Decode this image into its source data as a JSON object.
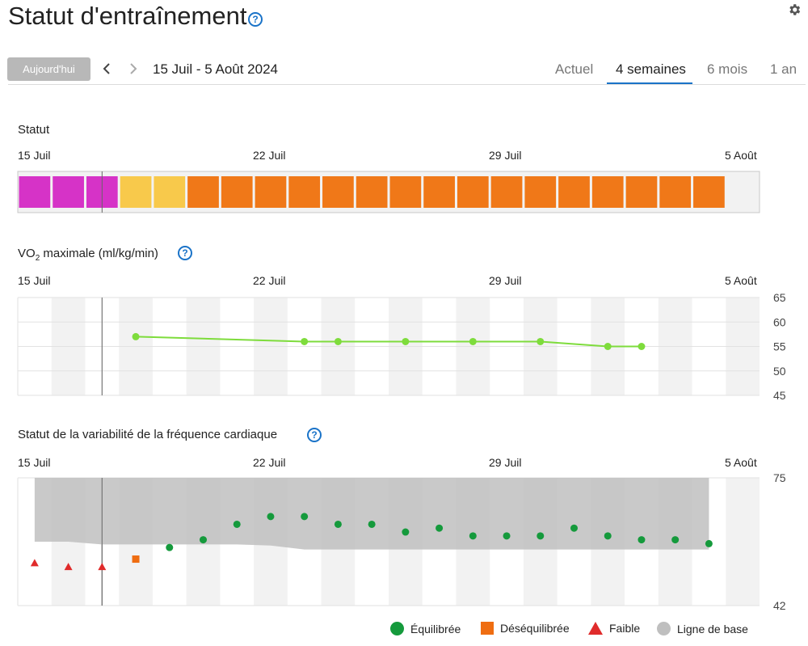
{
  "header": {
    "title": "Statut d'entraînement",
    "help_glyph": "?"
  },
  "toolbar": {
    "today_label": "Aujourd'hui",
    "date_range": "15 Juil - 5 Août 2024",
    "tabs": [
      {
        "label": "Actuel",
        "active": false
      },
      {
        "label": "4 semaines",
        "active": true
      },
      {
        "label": "6 mois",
        "active": false
      },
      {
        "label": "1 an",
        "active": false
      }
    ]
  },
  "date_labels": [
    "15 Juil",
    "22 Juil",
    "29 Juil",
    "5 Août"
  ],
  "colors": {
    "accent": "#1a73c8",
    "status_magenta": "#d633c7",
    "status_yellow": "#f8c94b",
    "status_orange": "#f07818",
    "vo2_line": "#7edc3c",
    "hrv_green": "#159a3c",
    "hrv_orange": "#ef6d11",
    "hrv_red": "#e02b2b",
    "baseline": "#bfbfbf"
  },
  "status_section": {
    "title": "Statut",
    "days": [
      "magenta",
      "magenta",
      "magenta",
      "yellow",
      "yellow",
      "orange",
      "orange",
      "orange",
      "orange",
      "orange",
      "orange",
      "orange",
      "orange",
      "orange",
      "orange",
      "orange",
      "orange",
      "orange",
      "orange",
      "orange",
      "orange",
      null
    ]
  },
  "vo2_section": {
    "title_prefix": "VO",
    "title_sub": "2",
    "title_suffix": " maximale (ml/kg/min)"
  },
  "hrv_section": {
    "title": "Statut de la variabilité de la fréquence cardiaque"
  },
  "chart_data": [
    {
      "type": "line",
      "name": "vo2max",
      "x_day_index": [
        3,
        8,
        9,
        11,
        13,
        15,
        17,
        18
      ],
      "values": [
        57,
        56,
        56,
        56,
        56,
        56,
        55,
        55
      ],
      "ylim": [
        45,
        65
      ],
      "yticks": [
        65,
        60,
        55,
        50,
        45
      ],
      "xticks": [
        "15 Juil",
        "22 Juil",
        "29 Juil",
        "5 Août"
      ]
    },
    {
      "type": "scatter",
      "name": "hrv",
      "ylim": [
        42,
        75
      ],
      "yticks": [
        75,
        42
      ],
      "xticks": [
        "15 Juil",
        "22 Juil",
        "29 Juil",
        "5 Août"
      ],
      "baseline_band": {
        "day_index": [
          0,
          1,
          2,
          3,
          4,
          5,
          6,
          7,
          8,
          9,
          10,
          11,
          12,
          13,
          14,
          15,
          16,
          17,
          18,
          19,
          20
        ],
        "upper": [
          75,
          75,
          75,
          75,
          75,
          75,
          75,
          75,
          75,
          75,
          75,
          75,
          75,
          75,
          75,
          75,
          75,
          75,
          75,
          75,
          75
        ],
        "lower": [
          58.5,
          58.5,
          57.8,
          57.8,
          57.8,
          57.8,
          57.8,
          57.5,
          56.5,
          56.5,
          56.5,
          56.5,
          56.5,
          56.5,
          56.5,
          56.5,
          56.5,
          56.5,
          56.5,
          56.5,
          56.5
        ]
      },
      "points": [
        {
          "day": 0,
          "value": 53,
          "status": "Faible"
        },
        {
          "day": 1,
          "value": 52,
          "status": "Faible"
        },
        {
          "day": 2,
          "value": 52,
          "status": "Faible"
        },
        {
          "day": 3,
          "value": 54,
          "status": "Déséquilibrée"
        },
        {
          "day": 4,
          "value": 57,
          "status": "Équilibrée"
        },
        {
          "day": 5,
          "value": 59,
          "status": "Équilibrée"
        },
        {
          "day": 6,
          "value": 63,
          "status": "Équilibrée"
        },
        {
          "day": 7,
          "value": 65,
          "status": "Équilibrée"
        },
        {
          "day": 8,
          "value": 65,
          "status": "Équilibrée"
        },
        {
          "day": 9,
          "value": 63,
          "status": "Équilibrée"
        },
        {
          "day": 10,
          "value": 63,
          "status": "Équilibrée"
        },
        {
          "day": 11,
          "value": 61,
          "status": "Équilibrée"
        },
        {
          "day": 12,
          "value": 62,
          "status": "Équilibrée"
        },
        {
          "day": 13,
          "value": 60,
          "status": "Équilibrée"
        },
        {
          "day": 14,
          "value": 60,
          "status": "Équilibrée"
        },
        {
          "day": 15,
          "value": 60,
          "status": "Équilibrée"
        },
        {
          "day": 16,
          "value": 62,
          "status": "Équilibrée"
        },
        {
          "day": 17,
          "value": 60,
          "status": "Équilibrée"
        },
        {
          "day": 18,
          "value": 59,
          "status": "Équilibrée"
        },
        {
          "day": 19,
          "value": 59,
          "status": "Équilibrée"
        },
        {
          "day": 20,
          "value": 58,
          "status": "Équilibrée"
        }
      ],
      "legend": [
        "Équilibrée",
        "Déséquilibrée",
        "Faible",
        "Ligne de base"
      ]
    }
  ]
}
